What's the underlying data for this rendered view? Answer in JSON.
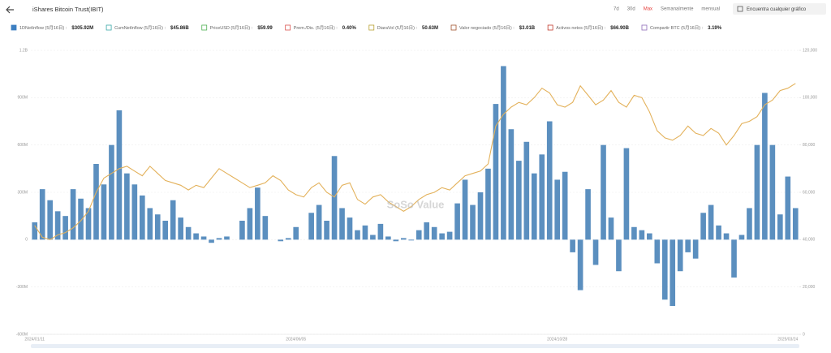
{
  "header": {
    "title": "iShares Bitcoin Trust(IBIT)",
    "ranges": [
      "7d",
      "30d",
      "Max",
      "Semanalmente",
      "mensual"
    ],
    "active_range": 2,
    "search": "Encuentra cualquier gráfico"
  },
  "legend": [
    {
      "label": "1DNetInflow (5月16日) :",
      "value": "$305.92M",
      "color": "#3d7fc1",
      "checked": true
    },
    {
      "label": "CumNetInflow (5月16日) :",
      "value": "$45.86B",
      "color": "#3aa8a8",
      "checked": false
    },
    {
      "label": "PriceUSD (5月16日) :",
      "value": "$59.99",
      "color": "#4caf50",
      "checked": false
    },
    {
      "label": "Prem./Dis. (5月16日) :",
      "value": "0.40%",
      "color": "#d9534f",
      "checked": false
    },
    {
      "label": "DiaraVol (5月16日) :",
      "value": "50.63M",
      "color": "#b8a030",
      "checked": false
    },
    {
      "label": "Valor negociado (5月16日) :",
      "value": "$3.01B",
      "color": "#a0522d",
      "checked": false
    },
    {
      "label": "Activos netos (5月16日) :",
      "value": "$66.90B",
      "color": "#c0392b",
      "checked": false
    },
    {
      "label": "Compartir BTC (5月16日) :",
      "value": "3.19%",
      "color": "#8e6bb8",
      "checked": false
    }
  ],
  "watermark": "SoSo Value",
  "chart_data": {
    "type": "bar-line",
    "grid": true,
    "categories": [
      "2024/01/11",
      null,
      null,
      null,
      null,
      null,
      null,
      null,
      null,
      null,
      null,
      null,
      null,
      null,
      null,
      null,
      null,
      null,
      null,
      null,
      null,
      null,
      null,
      null,
      null,
      null,
      null,
      null,
      null,
      null,
      null,
      null,
      null,
      null,
      "2024/06/05",
      null,
      null,
      null,
      null,
      null,
      null,
      null,
      null,
      null,
      null,
      null,
      null,
      null,
      null,
      null,
      null,
      null,
      null,
      null,
      null,
      null,
      null,
      null,
      null,
      null,
      null,
      null,
      null,
      null,
      null,
      null,
      null,
      null,
      "2024/10/28",
      null,
      null,
      null,
      null,
      null,
      null,
      null,
      null,
      null,
      null,
      null,
      null,
      null,
      null,
      null,
      null,
      null,
      null,
      null,
      null,
      null,
      null,
      null,
      null,
      null,
      null,
      null,
      null,
      null,
      "2025/03/24",
      null
    ],
    "ylim": [
      -600,
      1200
    ],
    "yticks": [
      {
        "value": -600,
        "label": "-600M"
      },
      {
        "value": -300,
        "label": "-300M"
      },
      0,
      {
        "value": 300,
        "label": "300M"
      },
      {
        "value": 600,
        "label": "600M"
      },
      {
        "value": 900,
        "label": "900M"
      },
      {
        "value": 1200,
        "label": "1.2B"
      }
    ],
    "y2lim": [
      0,
      120000
    ],
    "y2ticks": [
      0,
      {
        "value": 20000,
        "label": "20,000"
      },
      {
        "value": 40000,
        "label": "40,000"
      },
      {
        "value": 60000,
        "label": "60,000"
      },
      {
        "value": 80000,
        "label": "80,000"
      },
      {
        "value": 100000,
        "label": "100,000"
      },
      {
        "value": 120000,
        "label": "120,000"
      }
    ],
    "series": [
      {
        "type": "bar",
        "color": "#5b8fbf",
        "values": [
          110,
          320,
          250,
          180,
          150,
          320,
          260,
          200,
          480,
          350,
          600,
          820,
          420,
          350,
          280,
          200,
          160,
          120,
          250,
          140,
          80,
          40,
          20,
          -20,
          10,
          20,
          0,
          120,
          200,
          330,
          150,
          0,
          -10,
          10,
          80,
          0,
          170,
          220,
          120,
          530,
          200,
          140,
          60,
          90,
          30,
          100,
          20,
          -10,
          10,
          -5,
          60,
          110,
          80,
          40,
          50,
          230,
          380,
          220,
          300,
          450,
          860,
          1100,
          700,
          500,
          620,
          420,
          540,
          750,
          380,
          430,
          -80,
          -320,
          320,
          -160,
          600,
          140,
          -200,
          580,
          80,
          60,
          40,
          -150,
          -380,
          -420,
          -200,
          -80,
          -120,
          170,
          220,
          90,
          40,
          -240,
          30,
          200,
          600,
          930,
          600,
          160,
          400,
          200
        ]
      },
      {
        "type": "line",
        "axis": "y2",
        "color": "#e3b15a",
        "values": [
          46000,
          41000,
          40000,
          42000,
          43000,
          45000,
          48000,
          52000,
          60000,
          66000,
          68000,
          70000,
          71000,
          69000,
          67000,
          71000,
          68000,
          65000,
          64000,
          63000,
          61000,
          63000,
          62000,
          66000,
          70000,
          68000,
          66000,
          64000,
          62000,
          63000,
          64000,
          67000,
          65000,
          61000,
          59000,
          58000,
          62000,
          64000,
          60000,
          58000,
          63000,
          64000,
          57000,
          55000,
          58000,
          59000,
          56000,
          54000,
          52000,
          54000,
          57000,
          59000,
          60000,
          62000,
          61000,
          64000,
          67000,
          68000,
          69000,
          72000,
          88000,
          93000,
          96000,
          98000,
          97000,
          100000,
          104000,
          102000,
          97000,
          96000,
          98000,
          105000,
          101000,
          97000,
          99000,
          103000,
          98000,
          96000,
          101000,
          100000,
          94000,
          86000,
          83000,
          82000,
          84000,
          88000,
          85000,
          84000,
          87000,
          85000,
          80000,
          84000,
          89000,
          90000,
          92000,
          97000,
          99000,
          103000,
          104000,
          106000
        ]
      }
    ]
  }
}
